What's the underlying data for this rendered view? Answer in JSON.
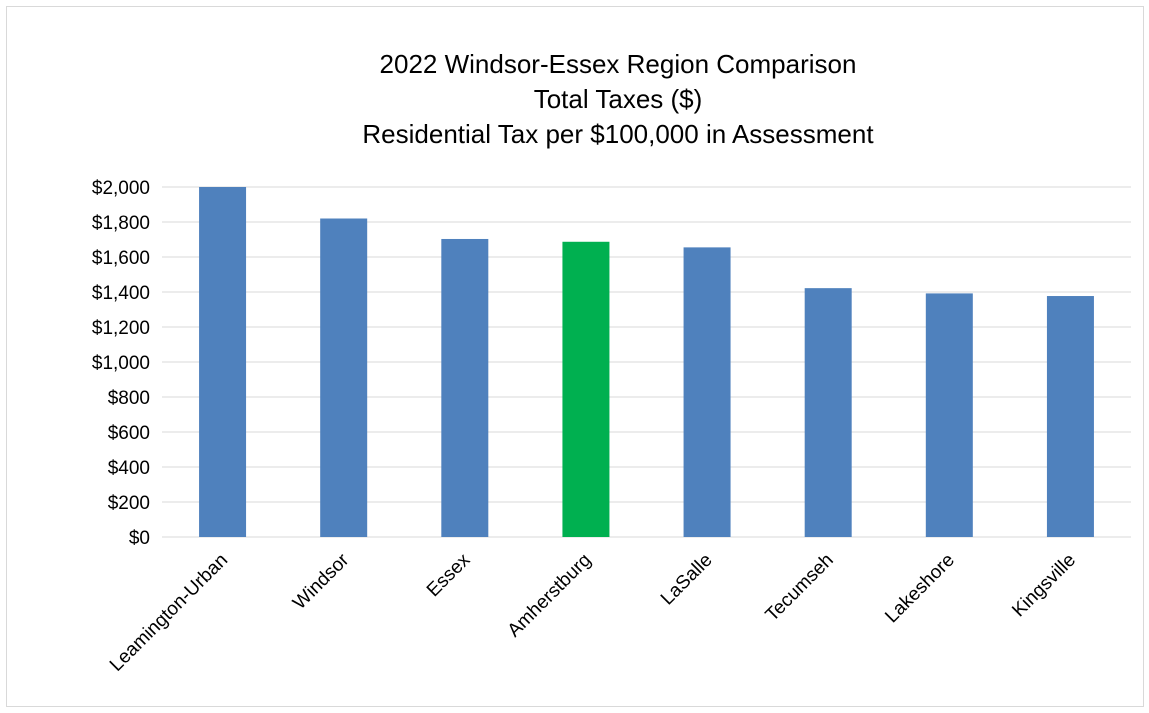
{
  "chart_data": {
    "type": "bar",
    "title_lines": [
      "2022 Windsor-Essex Region Comparison",
      "Total Taxes ($)",
      "Residential Tax per $100,000 in Assessment"
    ],
    "xlabel": "",
    "ylabel": "",
    "categories": [
      "Leamington-Urban",
      "Windsor",
      "Essex",
      "Amherstburg",
      "LaSalle",
      "Tecumseh",
      "Lakeshore",
      "Kingsville"
    ],
    "values": [
      2000,
      1820,
      1703,
      1687,
      1655,
      1422,
      1392,
      1377
    ],
    "bar_colors": [
      "#4f81bd",
      "#4f81bd",
      "#4f81bd",
      "#00b050",
      "#4f81bd",
      "#4f81bd",
      "#4f81bd",
      "#4f81bd"
    ],
    "ylim": [
      0,
      2000
    ],
    "y_ticks": [
      0,
      200,
      400,
      600,
      800,
      1000,
      1200,
      1400,
      1600,
      1800,
      2000
    ],
    "y_tick_labels": [
      "$0",
      "$200",
      "$400",
      "$600",
      "$800",
      "$1,000",
      "$1,200",
      "$1,400",
      "$1,600",
      "$1,800",
      "$2,000"
    ],
    "grid": true,
    "legend": "none"
  }
}
